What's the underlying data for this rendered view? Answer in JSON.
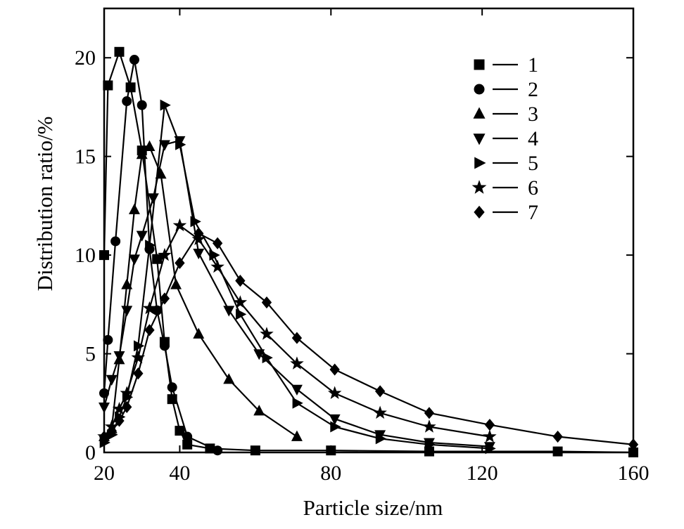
{
  "chart_data": {
    "type": "line",
    "title": "",
    "xlabel": "Particle size/nm",
    "ylabel": "Distribution ratio/%",
    "xlim": [
      20,
      160
    ],
    "ylim": [
      0,
      22.5
    ],
    "xticks": [
      20,
      40,
      80,
      120,
      160
    ],
    "yticks": [
      0,
      5,
      10,
      15,
      20
    ],
    "grid": false,
    "legend_position": "top-right",
    "series": [
      {
        "name": "1",
        "marker": "square",
        "x": [
          20,
          21,
          24,
          27,
          30,
          34,
          36,
          38,
          40,
          42,
          48,
          60,
          80,
          106,
          140,
          160
        ],
        "y": [
          10.0,
          18.6,
          20.3,
          18.5,
          15.3,
          9.8,
          5.6,
          2.7,
          1.1,
          0.4,
          0.2,
          0.1,
          0.1,
          0.05,
          0.05,
          0.0
        ]
      },
      {
        "name": "2",
        "marker": "circle",
        "x": [
          20,
          21,
          23,
          26,
          28,
          30,
          32,
          34,
          36,
          38,
          42,
          50
        ],
        "y": [
          3.0,
          5.7,
          10.7,
          17.8,
          19.9,
          17.6,
          10.3,
          7.2,
          5.4,
          3.3,
          0.8,
          0.1
        ]
      },
      {
        "name": "3",
        "marker": "triangle-up",
        "x": [
          20,
          22,
          24,
          26,
          28,
          30,
          32,
          35,
          39,
          45,
          53,
          61,
          71
        ],
        "y": [
          0.8,
          1.2,
          4.7,
          8.5,
          12.3,
          15.1,
          15.5,
          14.1,
          8.5,
          6.0,
          3.7,
          2.1,
          0.8
        ]
      },
      {
        "name": "4",
        "marker": "triangle-down",
        "x": [
          20,
          22,
          24,
          26,
          28,
          30,
          33,
          36,
          40,
          45,
          53,
          61,
          71,
          81,
          93,
          106,
          122
        ],
        "y": [
          2.3,
          3.7,
          4.9,
          7.2,
          9.8,
          11.0,
          12.9,
          15.6,
          15.8,
          10.1,
          7.2,
          5.0,
          3.2,
          1.7,
          0.9,
          0.5,
          0.3
        ]
      },
      {
        "name": "5",
        "marker": "triangle-right",
        "x": [
          20,
          22,
          24,
          26,
          29,
          32,
          36,
          40,
          44,
          49,
          56,
          63,
          71,
          81,
          93,
          106,
          122
        ],
        "y": [
          0.5,
          0.9,
          1.8,
          2.8,
          5.4,
          10.5,
          17.6,
          15.6,
          11.7,
          10.0,
          7.0,
          4.8,
          2.5,
          1.3,
          0.7,
          0.4,
          0.2
        ]
      },
      {
        "name": "6",
        "marker": "star",
        "x": [
          20,
          22,
          24,
          26,
          29,
          32,
          36,
          40,
          45,
          50,
          56,
          63,
          71,
          81,
          93,
          106,
          122
        ],
        "y": [
          0.8,
          1.3,
          2.2,
          3.0,
          4.8,
          7.3,
          10.0,
          11.5,
          10.8,
          9.4,
          7.6,
          6.0,
          4.5,
          3.0,
          2.0,
          1.3,
          0.8
        ]
      },
      {
        "name": "7",
        "marker": "diamond",
        "x": [
          20,
          22,
          24,
          26,
          29,
          32,
          36,
          40,
          45,
          50,
          56,
          63,
          71,
          81,
          93,
          106,
          122,
          140,
          160
        ],
        "y": [
          0.8,
          1.1,
          1.6,
          2.3,
          4.0,
          6.2,
          7.8,
          9.6,
          11.1,
          10.6,
          8.7,
          7.6,
          5.8,
          4.2,
          3.1,
          2.0,
          1.4,
          0.8,
          0.4
        ]
      }
    ]
  }
}
